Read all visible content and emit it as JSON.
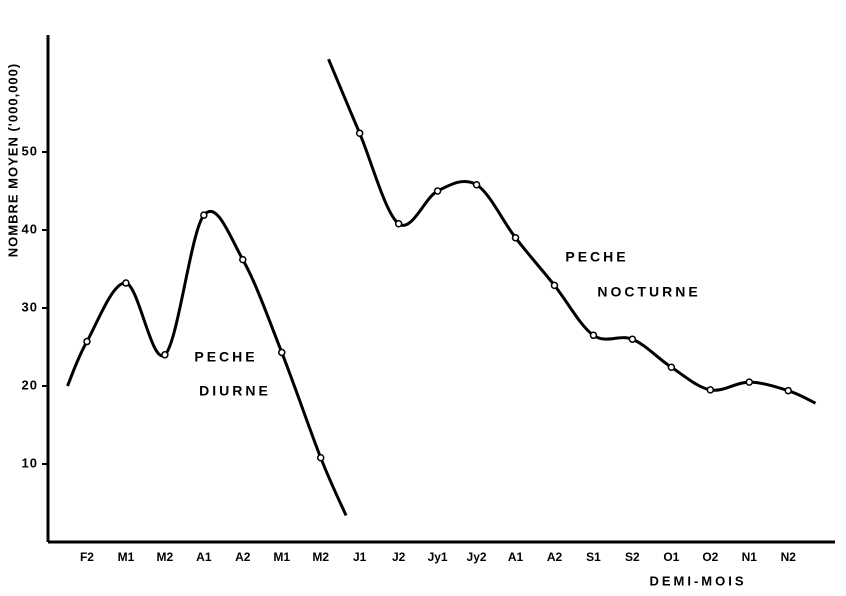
{
  "chart_data": {
    "type": "line",
    "y_label": "NOMBRE MOYEN ('000,000)",
    "x_label": "DEMI-MOIS",
    "categories": [
      "F2",
      "M1",
      "M2",
      "A1",
      "A2",
      "M1",
      "M2",
      "J1",
      "J2",
      "Jy1",
      "Jy2",
      "A1",
      "A2",
      "S1",
      "S2",
      "O1",
      "O2",
      "N1",
      "N2"
    ],
    "xlim": [
      -1,
      19.2
    ],
    "ylim": [
      0,
      65
    ],
    "yticks": [
      10,
      20,
      30,
      40,
      50
    ],
    "annotations": [
      "PECHE",
      "DIURNE",
      "PECHE",
      "NOCTURNE"
    ],
    "series": [
      {
        "color": "#000000",
        "x": [
          -0.5,
          0,
          1,
          2,
          3,
          4,
          5,
          6,
          6.65
        ],
        "values": [
          20,
          25.7,
          33.2,
          24,
          41.9,
          36.2,
          24.3,
          10.8,
          3.4
        ]
      },
      {
        "color": "#000000",
        "x": [
          6.2,
          7,
          8,
          9,
          10,
          11,
          12,
          13,
          14,
          15,
          16,
          17,
          18,
          18.7
        ],
        "values": [
          61.9,
          52.4,
          40.8,
          45,
          45.8,
          39,
          32.9,
          26.5,
          26,
          22.4,
          19.5,
          20.5,
          19.4,
          17.8
        ]
      }
    ]
  }
}
